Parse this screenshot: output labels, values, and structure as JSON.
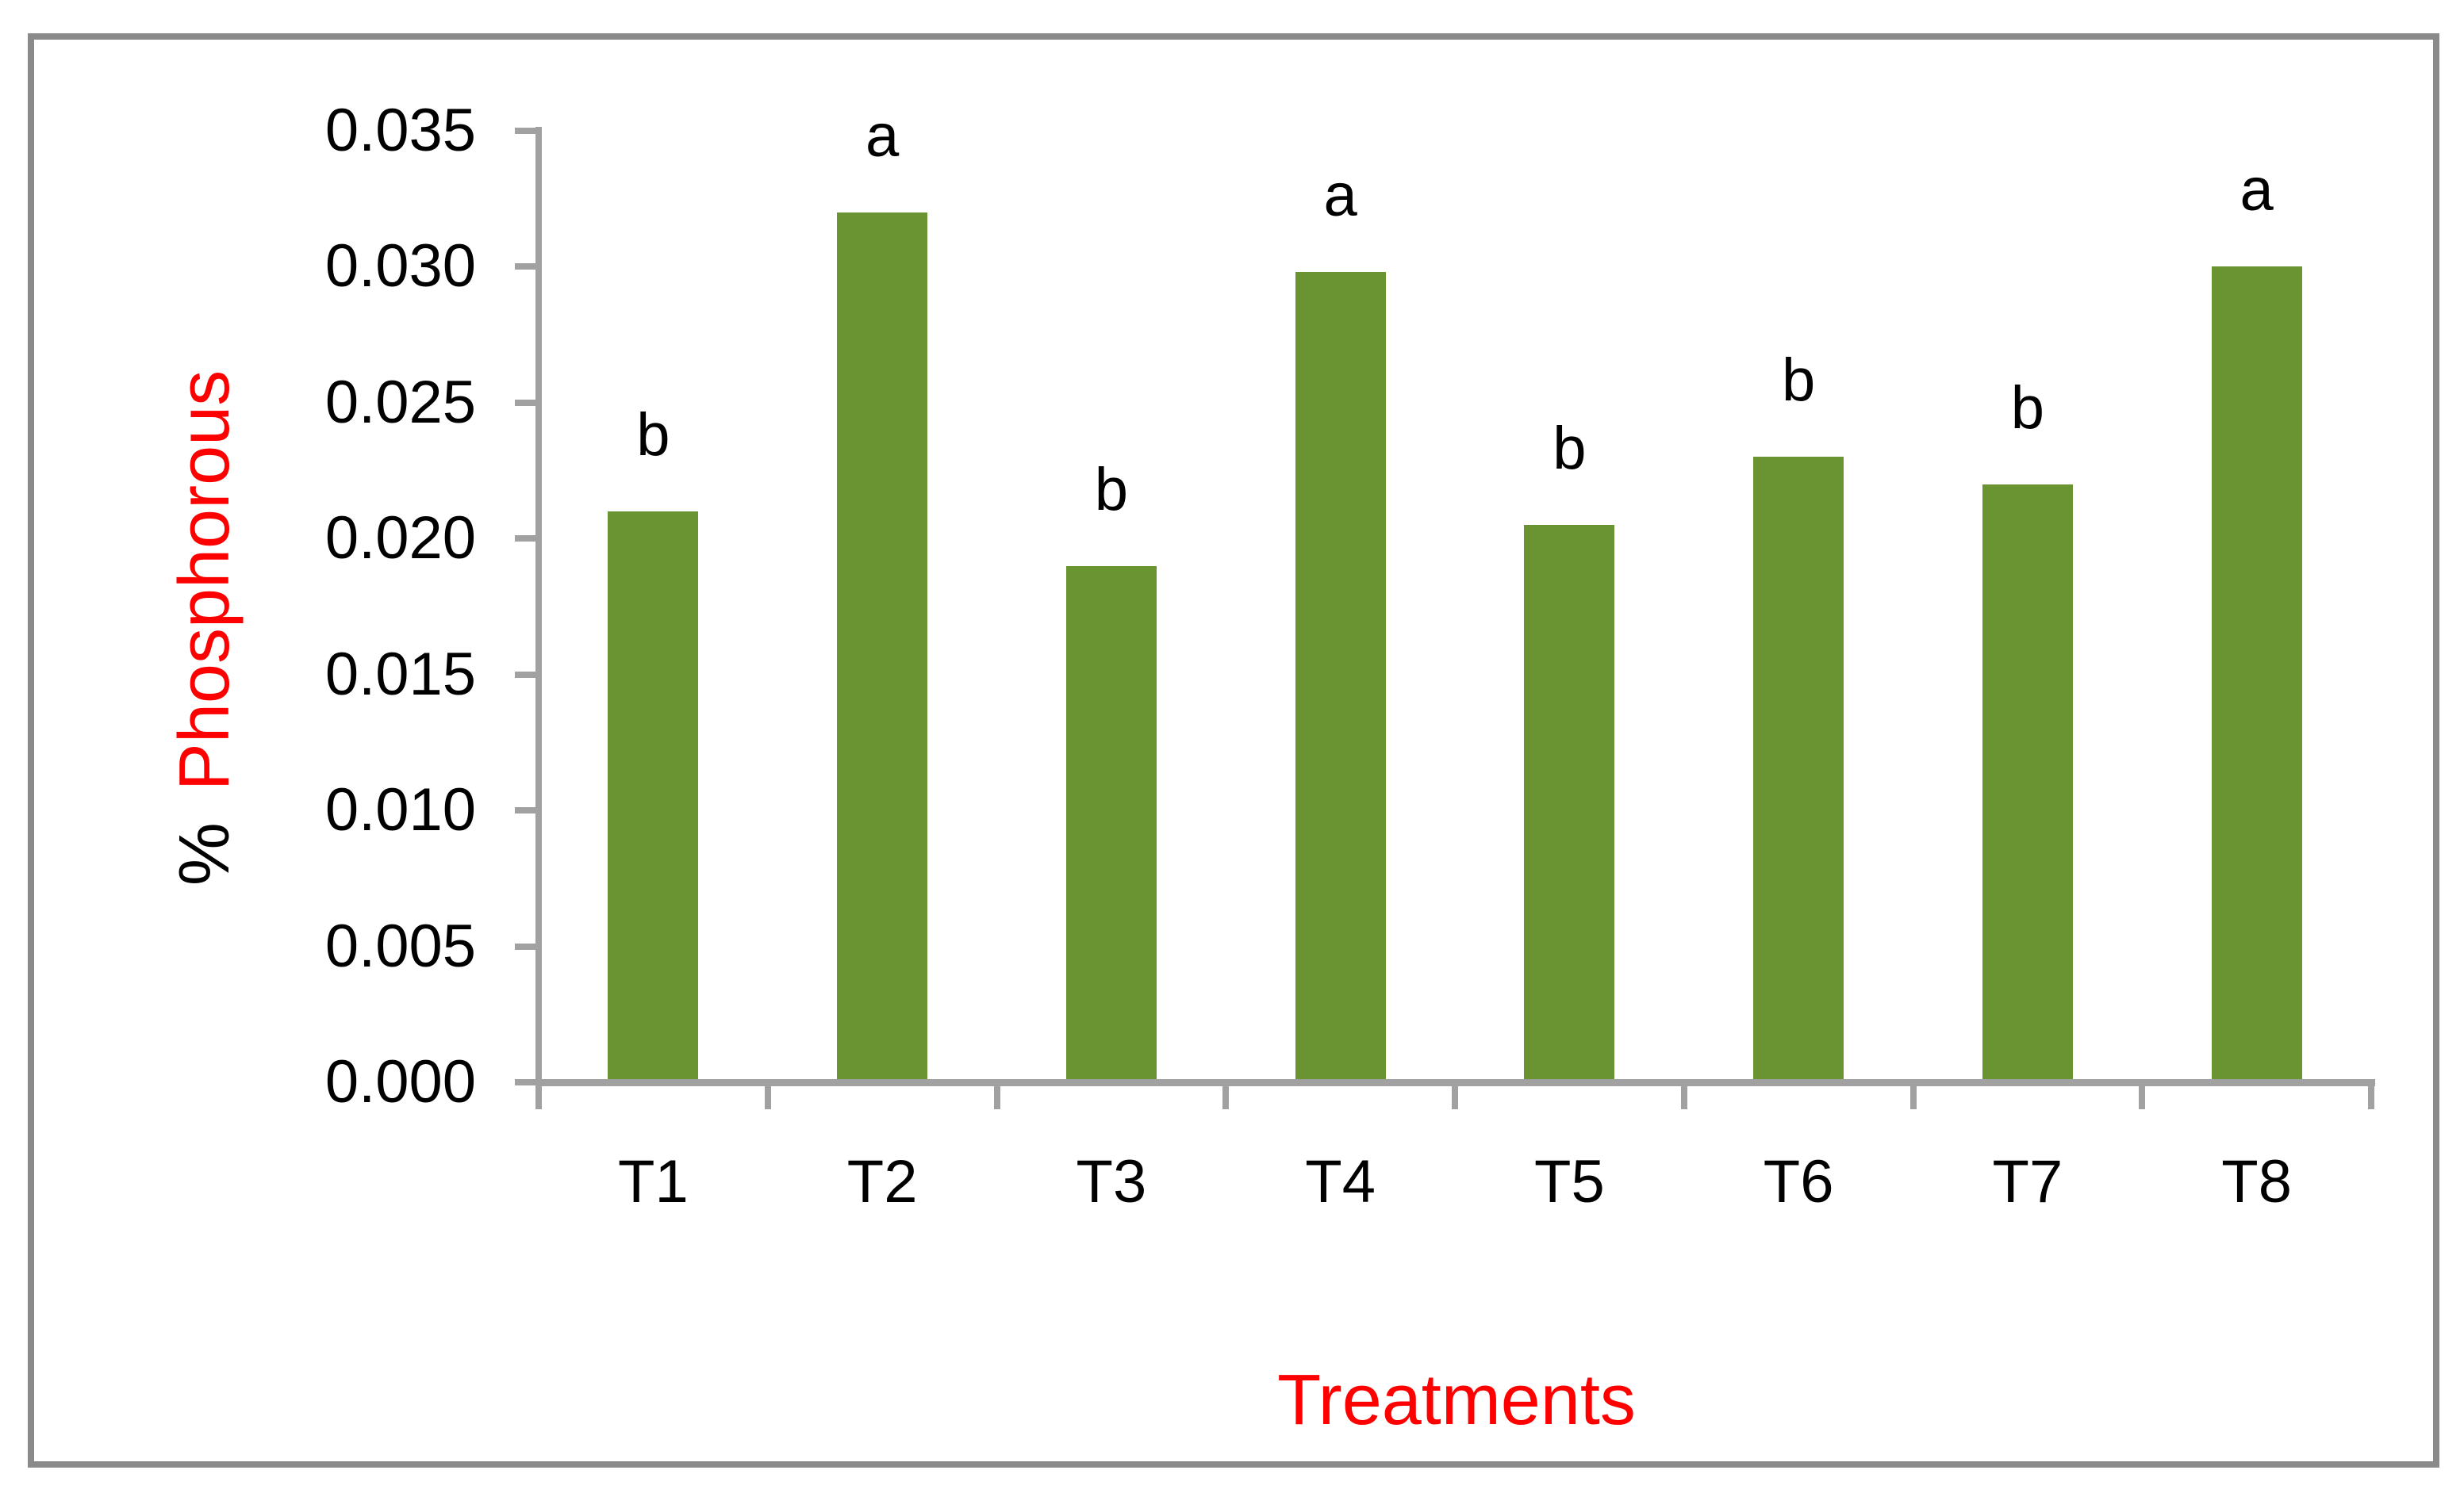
{
  "chart_data": {
    "type": "bar",
    "title": "",
    "xlabel": "Treatments",
    "ylabel": "% Phosphorous",
    "ylabel_parts": [
      {
        "text": "%",
        "color": "#000000"
      },
      {
        "text": "Phosphorous",
        "color": "#FF0000"
      }
    ],
    "categories": [
      "T1",
      "T2",
      "T3",
      "T4",
      "T5",
      "T6",
      "T7",
      "T8"
    ],
    "values": [
      0.021,
      0.032,
      0.019,
      0.0298,
      0.0205,
      0.023,
      0.022,
      0.03
    ],
    "significance_letters": [
      "b",
      "a",
      "b",
      "a",
      "b",
      "b",
      "b",
      "a"
    ],
    "y_tick_labels": [
      "0.000",
      "0.005",
      "0.010",
      "0.015",
      "0.020",
      "0.025",
      "0.030",
      "0.035"
    ],
    "ylim": [
      0,
      0.035
    ],
    "y_tick_step": 0.005,
    "grid": "off",
    "legend": "none",
    "colors": {
      "bar": "#6A9432",
      "axis": "#A1A1A1",
      "frame": "#8A8A8A",
      "axis_title_red": "#FF0000",
      "tick_text": "#000000",
      "background": "#FFFFFF"
    }
  }
}
